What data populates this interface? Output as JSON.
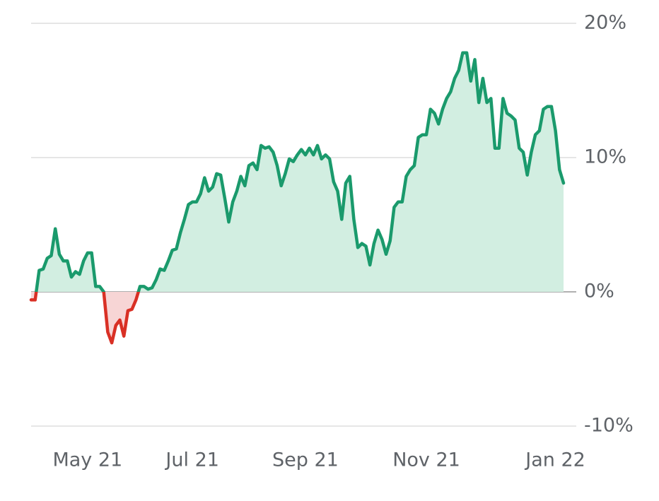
{
  "chart_data": {
    "type": "line",
    "series": [
      {
        "color": "#1a9a6c",
        "negative_color": "#d93025",
        "fill_color": "#d2eee1",
        "negative_fill_color": "#f7d5d5",
        "values": [
          -0.6,
          -0.6,
          1.6,
          1.7,
          2.5,
          2.7,
          4.7,
          2.8,
          2.3,
          2.3,
          1.1,
          1.5,
          1.3,
          2.3,
          2.9,
          2.9,
          0.4,
          0.4,
          0,
          -3.0,
          -3.8,
          -2.5,
          -2.1,
          -3.3,
          -1.4,
          -1.3,
          -0.6,
          0.4,
          0.4,
          0.2,
          0.3,
          0.9,
          1.7,
          1.6,
          2.3,
          3.1,
          3.2,
          4.4,
          5.4,
          6.5,
          6.7,
          6.7,
          7.3,
          8.5,
          7.5,
          7.8,
          8.8,
          8.7,
          7.0,
          5.2,
          6.7,
          7.5,
          8.6,
          7.9,
          9.4,
          9.6,
          9.1,
          10.9,
          10.7,
          10.8,
          10.4,
          9.4,
          7.9,
          8.8,
          9.9,
          9.7,
          10.2,
          10.6,
          10.2,
          10.7,
          10.2,
          10.9,
          9.9,
          10.2,
          9.9,
          8.2,
          7.5,
          5.4,
          8.1,
          8.6,
          5.4,
          3.3,
          3.6,
          3.4,
          2.0,
          3.6,
          4.6,
          3.9,
          2.8,
          3.8,
          6.3,
          6.7,
          6.7,
          8.6,
          9.1,
          9.4,
          11.5,
          11.7,
          11.7,
          13.6,
          13.3,
          12.5,
          13.6,
          14.4,
          14.9,
          15.9,
          16.5,
          17.8,
          17.8,
          15.7,
          17.3,
          14.1,
          15.9,
          14.1,
          14.4,
          10.7,
          10.7,
          14.4,
          13.3,
          13.1,
          12.8,
          10.7,
          10.4,
          8.7,
          10.4,
          11.7,
          12.0,
          13.6,
          13.8,
          13.8,
          12.0,
          9.1,
          8.1
        ]
      }
    ],
    "xlim": [
      0,
      132
    ],
    "xticks": [
      {
        "value": 14,
        "label": "May 21"
      },
      {
        "value": 40,
        "label": "Jul 21"
      },
      {
        "value": 68,
        "label": "Sep 21"
      },
      {
        "value": 98,
        "label": "Nov 21"
      },
      {
        "value": 130,
        "label": "Jan 22"
      }
    ],
    "ylim": [
      -10,
      20
    ],
    "yticks": [
      {
        "value": -10,
        "label": "-10%"
      },
      {
        "value": 0,
        "label": "0%"
      },
      {
        "value": 10,
        "label": "10%"
      },
      {
        "value": 20,
        "label": "20%"
      }
    ],
    "grid": true
  }
}
